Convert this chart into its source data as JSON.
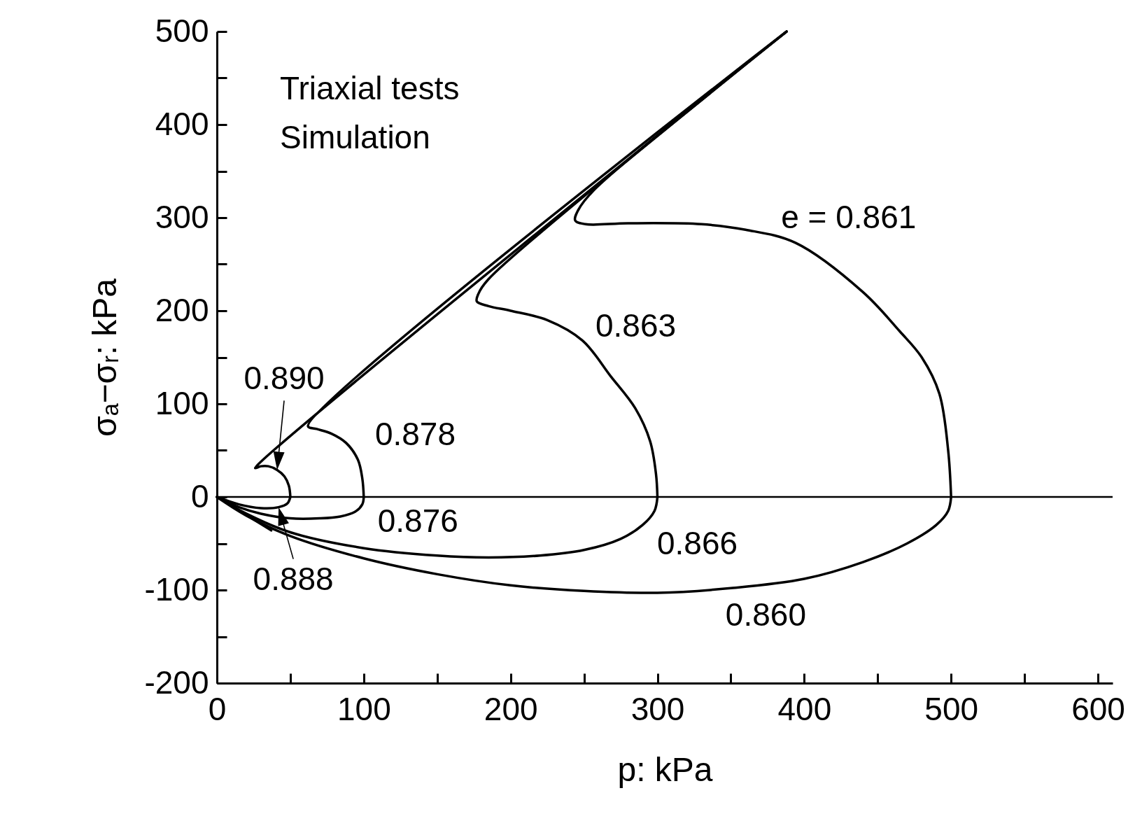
{
  "chart_data": {
    "type": "line",
    "xlabel": "p: kPa",
    "ylabel": "σₐ−σᵣ: kPa",
    "xlim": [
      0,
      610
    ],
    "ylim": [
      -200,
      500
    ],
    "xticks": [
      0,
      {
        "value": 50,
        "label": null
      },
      100,
      {
        "value": 150,
        "label": null
      },
      200,
      {
        "value": 250,
        "label": null
      },
      300,
      {
        "value": 350,
        "label": null
      },
      400,
      {
        "value": 450,
        "label": null
      },
      500,
      {
        "value": 550,
        "label": null
      },
      600
    ],
    "yticks": [
      -200,
      {
        "value": -150,
        "label": null
      },
      -100,
      {
        "value": -50,
        "label": null
      },
      0,
      {
        "value": 50,
        "label": null
      },
      100,
      {
        "value": 150,
        "label": null
      },
      200,
      {
        "value": 250,
        "label": null
      },
      300,
      {
        "value": 350,
        "label": null
      },
      400,
      {
        "value": 450,
        "label": null
      },
      500
    ],
    "grid": false,
    "legend": false,
    "series": [
      {
        "name": "e = 0.861",
        "color": "#000000",
        "x": [
          500,
          498,
          492,
          480,
          465,
          440,
          394,
          360,
          330,
          280,
          251,
          244,
          246,
          257,
          388
        ],
        "values": [
          0,
          50,
          111,
          150,
          178,
          220,
          273,
          287,
          293,
          294,
          293,
          297,
          308,
          330,
          500
        ]
      },
      {
        "name": "0.863",
        "color": "#000000",
        "x": [
          300,
          299,
          295,
          285,
          268,
          249,
          225,
          200,
          185,
          177,
          178,
          185,
          388
        ],
        "values": [
          0,
          25,
          60,
          95,
          130,
          168,
          190,
          200,
          205,
          210,
          218,
          234,
          500
        ]
      },
      {
        "name": "0.878",
        "color": "#000000",
        "x": [
          100,
          99,
          96,
          88,
          78,
          68,
          62,
          388
        ],
        "values": [
          0,
          20,
          40,
          58,
          68,
          73,
          76,
          500
        ]
      },
      {
        "name": "0.890",
        "color": "#000000",
        "x": [
          50,
          49,
          46,
          41,
          35,
          30,
          26,
          388
        ],
        "values": [
          0,
          12,
          22,
          29,
          33,
          33,
          31,
          500
        ]
      },
      {
        "color": "#000000",
        "x": [
          50,
          48,
          42,
          30,
          15,
          0
        ],
        "values": [
          0,
          -7,
          -11,
          -12,
          -8,
          0
        ]
      },
      {
        "name": "0.876",
        "color": "#000000",
        "x": [
          100,
          99,
          94,
          84,
          70,
          50,
          30,
          15,
          0
        ],
        "values": [
          0,
          -8,
          -16,
          -21,
          -23,
          -23,
          -18,
          -11,
          0
        ]
      },
      {
        "name": "0.866",
        "color": "#000000",
        "x": [
          300,
          298,
          290,
          275,
          250,
          220,
          185,
          150,
          100,
          50,
          20,
          0
        ],
        "values": [
          0,
          -15,
          -30,
          -45,
          -57,
          -63,
          -65,
          -63,
          -55,
          -38,
          -18,
          0
        ]
      },
      {
        "name": "0.860",
        "color": "#000000",
        "x": [
          500,
          498,
          490,
          470,
          440,
          400,
          350,
          300,
          250,
          200,
          150,
          100,
          50,
          20,
          0
        ],
        "values": [
          0,
          -15,
          -30,
          -50,
          -70,
          -88,
          -98,
          -103,
          -101,
          -95,
          -83,
          -66,
          -42,
          -20,
          0
        ]
      },
      {
        "color": "#000000",
        "x": [
          0,
          37
        ],
        "values": [
          0,
          -36
        ]
      }
    ],
    "ref_lines": [
      {
        "axis": "y",
        "value": 0,
        "color": "#000000"
      }
    ],
    "annotations": [
      "Triaxial tests",
      "Simulation",
      {
        "text": "0.888",
        "x": 42,
        "y": -11
      }
    ]
  }
}
